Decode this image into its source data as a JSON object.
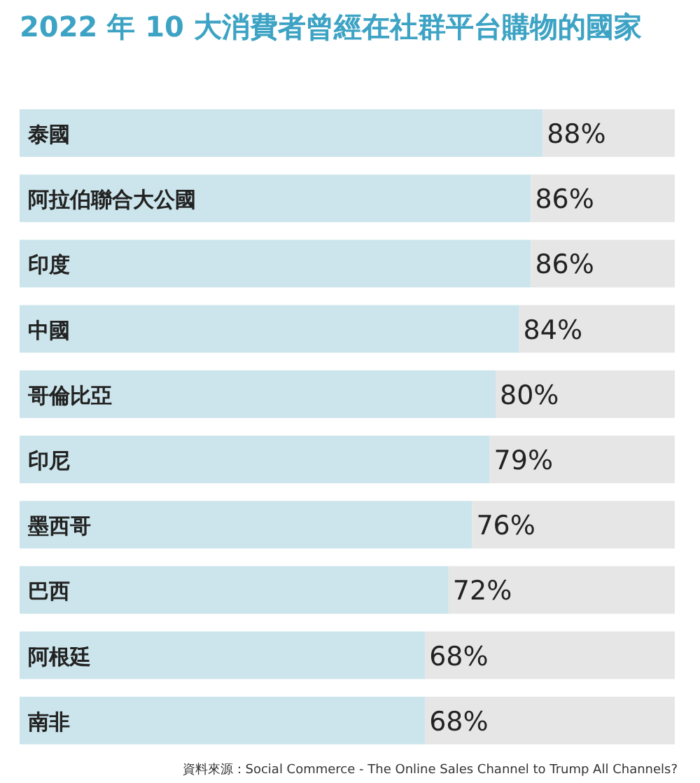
{
  "chart_data": {
    "type": "bar",
    "orientation": "horizontal",
    "title": "2022 年 10 大消費者曾經在社群平台購物的國家",
    "categories": [
      "泰國",
      "阿拉伯聯合大公國",
      "印度",
      "中國",
      "哥倫比亞",
      "印尼",
      "墨西哥",
      "巴西",
      "阿根廷",
      "南非"
    ],
    "values": [
      88,
      86,
      86,
      84,
      80,
      79,
      76,
      72,
      68,
      68
    ],
    "value_labels": [
      "88%",
      "86%",
      "86%",
      "84%",
      "80%",
      "79%",
      "76%",
      "72%",
      "68%",
      "68%"
    ],
    "color": "#cce5ec",
    "xlim": [
      0,
      110
    ],
    "annotations": [
      "資料來源：Social Commerce - The Online Sales Channel to Trump All Channels?"
    ]
  }
}
